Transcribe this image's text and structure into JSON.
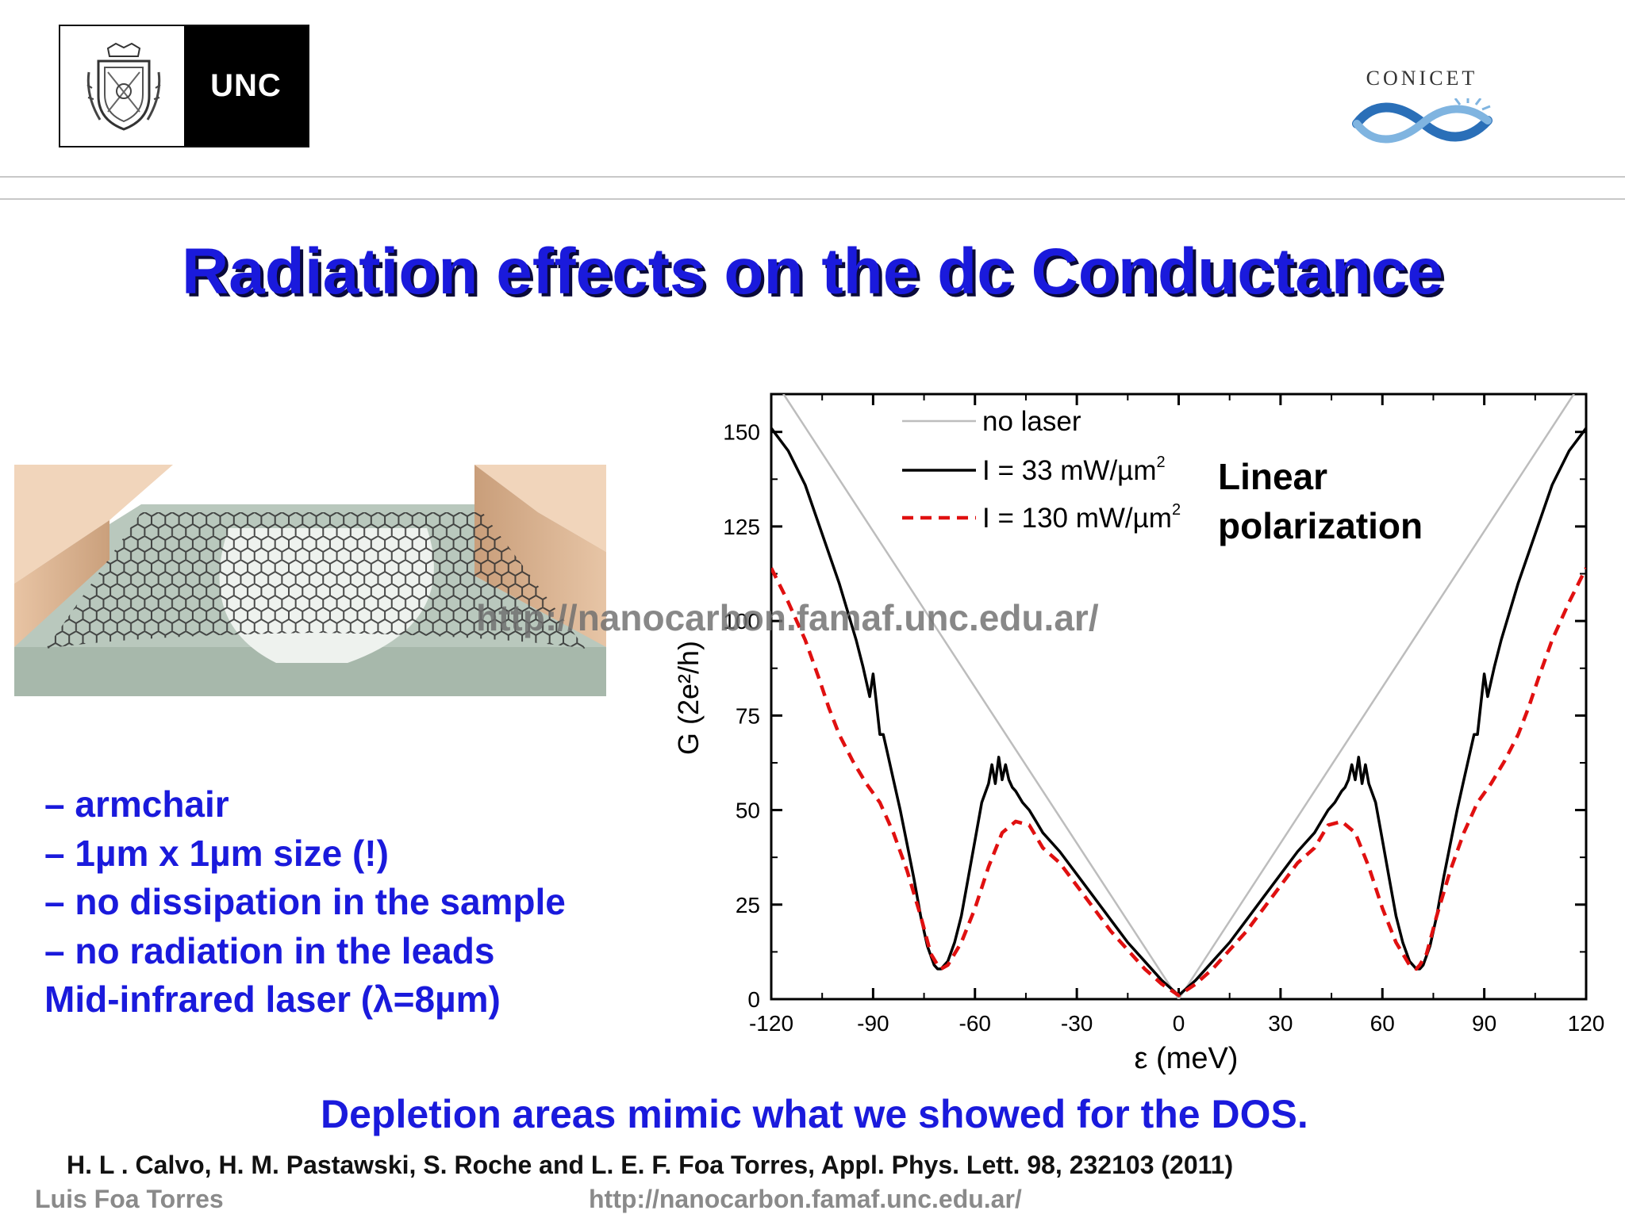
{
  "header": {
    "unc_logo_text": "UNC",
    "conicet_logo_text": "CONICET"
  },
  "slide": {
    "title": "Radiation effects on the dc Conductance",
    "watermark": "http://nanocarbon.famaf.unc.edu.ar/",
    "bullets": [
      "– armchair",
      "– 1µm x 1µm size (!)",
      "– no dissipation in the sample",
      "– no radiation in the leads",
      "Mid-infrared laser (λ=8µm)"
    ],
    "conclusion": "Depletion areas mimic what we showed for the DOS.",
    "reference": "H. L . Calvo, H. M. Pastawski, S. Roche and  L. E. F. Foa Torres, Appl. Phys. Lett. 98, 232103 (2011)",
    "author": "Luis Foa Torres",
    "footer_url": "http://nanocarbon.famaf.unc.edu.ar/"
  },
  "colors": {
    "title": "#1a1adc",
    "no_laser": "#bdbdbd",
    "laser_33": "#000000",
    "laser_130": "#e01010"
  },
  "chart_data": {
    "type": "line",
    "title": "",
    "xlabel": "ε (meV)",
    "ylabel": "G (2e²/h)",
    "xlim": [
      -120,
      120
    ],
    "ylim": [
      0,
      160
    ],
    "xticks": [
      -120,
      -90,
      -60,
      -30,
      0,
      30,
      60,
      90,
      120
    ],
    "yticks": [
      0,
      25,
      50,
      75,
      100,
      125,
      150
    ],
    "grid": false,
    "legend_position": "top-left",
    "annotation": [
      "Linear",
      "polarization"
    ],
    "series": [
      {
        "name": "no laser",
        "unit": "",
        "style": "solid-gray",
        "x": [
          -120,
          0,
          120
        ],
        "y": [
          165,
          0,
          165
        ]
      },
      {
        "name": "I =  33  mW/µm",
        "unit": "2",
        "style": "solid-black",
        "x": [
          -120,
          -115,
          -110,
          -105,
          -100,
          -95,
          -93,
          -91,
          -90,
          -89,
          -88,
          -87,
          -86,
          -84,
          -82,
          -80,
          -78,
          -76,
          -74,
          -72,
          -71,
          -70,
          -68,
          -66,
          -64,
          -62,
          -60,
          -58,
          -56,
          -55,
          -54,
          -53,
          -52,
          -51,
          -50,
          -49,
          -48,
          -46,
          -44,
          -42,
          -40,
          -35,
          -30,
          -25,
          -20,
          -15,
          -10,
          -5,
          0,
          5,
          10,
          15,
          20,
          25,
          30,
          35,
          40,
          42,
          44,
          46,
          48,
          49,
          50,
          51,
          52,
          53,
          54,
          55,
          56,
          58,
          60,
          62,
          64,
          66,
          68,
          70,
          71,
          72,
          74,
          76,
          78,
          80,
          82,
          84,
          86,
          87,
          88,
          89,
          90,
          91,
          93,
          95,
          100,
          105,
          110,
          115,
          120
        ],
        "y": [
          151,
          145,
          136,
          123,
          110,
          95,
          88,
          80,
          86,
          78,
          70,
          70,
          66,
          58,
          50,
          41,
          32,
          22,
          14,
          9,
          8,
          8,
          10,
          15,
          22,
          32,
          42,
          52,
          57,
          62,
          57,
          64,
          58,
          62,
          58,
          56,
          55,
          52,
          50,
          47,
          44,
          39,
          33,
          27,
          21,
          15,
          10,
          5,
          1,
          5,
          10,
          15,
          21,
          27,
          33,
          39,
          44,
          47,
          50,
          52,
          55,
          56,
          58,
          62,
          58,
          64,
          57,
          62,
          57,
          52,
          42,
          32,
          22,
          15,
          10,
          8,
          8,
          9,
          14,
          22,
          32,
          41,
          50,
          58,
          66,
          70,
          70,
          78,
          86,
          80,
          88,
          95,
          110,
          123,
          136,
          145,
          151
        ]
      },
      {
        "name": "I = 130 mW/µm",
        "unit": "2",
        "style": "dashed-red",
        "x": [
          -120,
          -115,
          -110,
          -106,
          -103,
          -100,
          -96,
          -92,
          -88,
          -84,
          -80,
          -76,
          -73,
          -71,
          -70,
          -68,
          -64,
          -60,
          -56,
          -52,
          -48,
          -44,
          -40,
          -35,
          -30,
          -25,
          -20,
          -15,
          -10,
          -5,
          0,
          5,
          10,
          15,
          20,
          25,
          30,
          35,
          40,
          44,
          48,
          52,
          56,
          60,
          64,
          68,
          70,
          71,
          73,
          76,
          80,
          84,
          88,
          92,
          96,
          100,
          103,
          106,
          110,
          115,
          120
        ],
        "y": [
          114,
          105,
          95,
          85,
          77,
          70,
          63,
          57,
          52,
          44,
          34,
          22,
          12,
          9,
          8,
          9,
          15,
          24,
          35,
          44,
          47,
          46,
          40,
          36,
          30,
          24,
          18,
          13,
          8,
          4,
          1,
          4,
          8,
          13,
          18,
          24,
          30,
          36,
          40,
          46,
          47,
          44,
          35,
          24,
          15,
          9,
          8,
          9,
          12,
          22,
          34,
          44,
          52,
          57,
          63,
          70,
          77,
          85,
          95,
          105,
          114
        ]
      }
    ]
  }
}
